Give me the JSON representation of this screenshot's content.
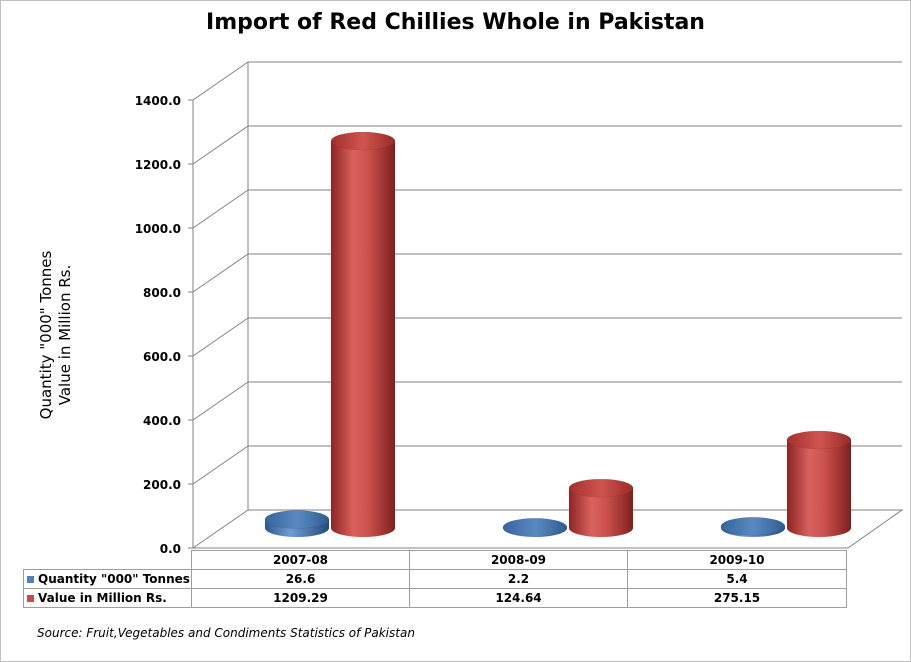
{
  "chart_data": {
    "type": "bar",
    "title": "Import of Red Chillies Whole in Pakistan",
    "ylabel_lines": [
      "Quantity \"000\" Tonnes",
      "Value in Million Rs."
    ],
    "categories": [
      "2007-08",
      "2008-09",
      "2009-10"
    ],
    "series": [
      {
        "name": "Quantity \"000\" Tonnes",
        "values_text": [
          "26.6",
          "2.2",
          "5.4"
        ],
        "values": [
          26.6,
          2.2,
          5.4
        ],
        "color": "#4f81bd"
      },
      {
        "name": "Value in Million Rs.",
        "values_text": [
          "1209.29",
          "124.64",
          "275.15"
        ],
        "values": [
          1209.29,
          124.64,
          275.15
        ],
        "color": "#c0504d"
      }
    ],
    "yticks": [
      "0.0",
      "200.0",
      "400.0",
      "600.0",
      "800.0",
      "1000.0",
      "1200.0",
      "1400.0"
    ],
    "ylim": [
      0,
      1400
    ],
    "grid": true,
    "legend": "data-table",
    "source": "Source: Fruit,Vegetables and Condiments Statistics of Pakistan"
  }
}
